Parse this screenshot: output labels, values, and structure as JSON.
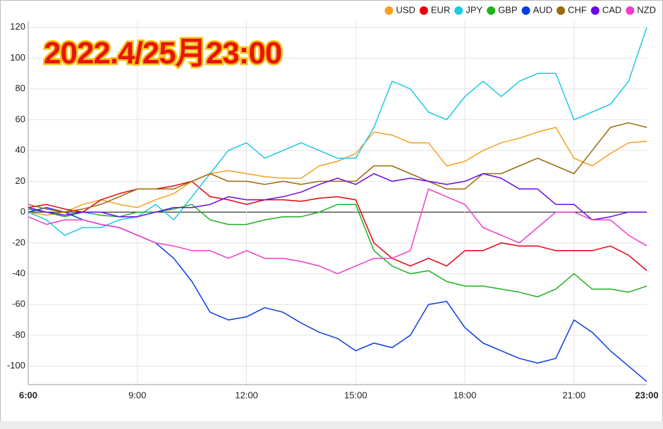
{
  "chart_data": {
    "type": "line",
    "title": "2022.4/25月23:00",
    "x": [
      6,
      6.5,
      7,
      7.5,
      8,
      8.5,
      9,
      9.5,
      10,
      10.5,
      11,
      11.5,
      12,
      12.5,
      13,
      13.5,
      14,
      14.5,
      15,
      15.5,
      16,
      16.5,
      17,
      17.5,
      18,
      18.5,
      19,
      19.5,
      20,
      20.5,
      21,
      21.5,
      22,
      22.5,
      23
    ],
    "xlim": [
      6,
      23
    ],
    "xticks": [
      {
        "value": 6,
        "label": "6:00"
      },
      {
        "value": 9,
        "label": "9:00"
      },
      {
        "value": 12,
        "label": "12:00"
      },
      {
        "value": 15,
        "label": "15:00"
      },
      {
        "value": 18,
        "label": "18:00"
      },
      {
        "value": 21,
        "label": "21:00"
      },
      {
        "value": 23,
        "label": "23:00"
      }
    ],
    "ylim": [
      -112,
      124
    ],
    "yticks": [
      -100,
      -80,
      -60,
      -40,
      -20,
      0,
      20,
      40,
      60,
      80,
      100,
      120
    ],
    "grid": true,
    "legend": "top-right",
    "series": [
      {
        "name": "USD",
        "color": "#f5a021",
        "values": [
          0,
          -2,
          0,
          5,
          8,
          5,
          3,
          8,
          12,
          20,
          25,
          27,
          25,
          23,
          22,
          22,
          30,
          33,
          38,
          52,
          50,
          45,
          45,
          30,
          33,
          40,
          45,
          48,
          52,
          55,
          35,
          30,
          38,
          45,
          46
        ]
      },
      {
        "name": "EUR",
        "color": "#e8000b",
        "values": [
          3,
          5,
          2,
          0,
          8,
          12,
          15,
          15,
          17,
          20,
          10,
          8,
          5,
          8,
          8,
          7,
          9,
          10,
          8,
          -20,
          -30,
          -35,
          -30,
          -35,
          -25,
          -25,
          -20,
          -22,
          -22,
          -25,
          -25,
          -25,
          -22,
          -28,
          -38
        ]
      },
      {
        "name": "JPY",
        "color": "#1ec8e6",
        "values": [
          0,
          -5,
          -15,
          -10,
          -10,
          -5,
          -3,
          5,
          -5,
          10,
          25,
          40,
          45,
          35,
          40,
          45,
          40,
          35,
          35,
          55,
          85,
          80,
          65,
          60,
          75,
          85,
          75,
          85,
          90,
          90,
          60,
          65,
          70,
          85,
          120
        ]
      },
      {
        "name": "GBP",
        "color": "#1db31d",
        "values": [
          2,
          0,
          -3,
          0,
          -2,
          -3,
          0,
          0,
          2,
          5,
          -5,
          -8,
          -8,
          -5,
          -3,
          -3,
          0,
          5,
          5,
          -25,
          -35,
          -40,
          -38,
          -45,
          -48,
          -48,
          -50,
          -52,
          -55,
          -50,
          -40,
          -50,
          -50,
          -52,
          -48
        ]
      },
      {
        "name": "AUD",
        "color": "#0a3ce8",
        "values": [
          0,
          3,
          0,
          -5,
          -8,
          -10,
          -15,
          -20,
          -30,
          -45,
          -65,
          -70,
          -68,
          -62,
          -65,
          -72,
          -78,
          -82,
          -90,
          -85,
          -88,
          -80,
          -60,
          -58,
          -75,
          -85,
          -90,
          -95,
          -98,
          -95,
          -70,
          -78,
          -90,
          -100,
          -110
        ]
      },
      {
        "name": "CHF",
        "color": "#9a6b0a",
        "values": [
          5,
          2,
          0,
          2,
          5,
          10,
          15,
          15,
          15,
          20,
          25,
          20,
          20,
          18,
          20,
          18,
          20,
          20,
          20,
          30,
          30,
          25,
          20,
          15,
          15,
          25,
          25,
          30,
          35,
          30,
          25,
          40,
          55,
          58,
          55
        ]
      },
      {
        "name": "CAD",
        "color": "#6a0ae8",
        "values": [
          3,
          0,
          -2,
          0,
          0,
          -3,
          -3,
          0,
          3,
          3,
          5,
          10,
          8,
          8,
          10,
          13,
          18,
          22,
          18,
          25,
          20,
          22,
          20,
          18,
          20,
          25,
          22,
          15,
          15,
          5,
          5,
          -5,
          -3,
          0,
          0
        ]
      },
      {
        "name": "NZD",
        "color": "#f03cc8",
        "values": [
          -3,
          -8,
          -5,
          -5,
          -8,
          -10,
          -15,
          -20,
          -22,
          -25,
          -25,
          -30,
          -25,
          -30,
          -30,
          -32,
          -35,
          -40,
          -35,
          -30,
          -30,
          -25,
          15,
          10,
          5,
          -10,
          -15,
          -20,
          -10,
          0,
          0,
          -5,
          -5,
          -15,
          -22
        ]
      }
    ]
  }
}
